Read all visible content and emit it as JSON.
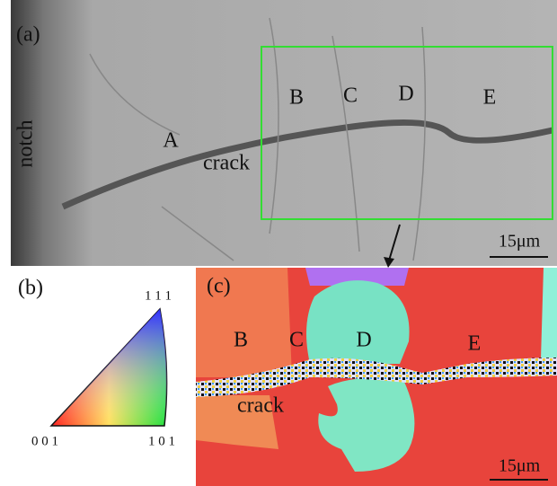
{
  "panel_a": {
    "label": "(a)",
    "notch": "notch",
    "crack": "crack",
    "grains": [
      "A",
      "B",
      "C",
      "D",
      "E"
    ],
    "scale": "15μm"
  },
  "panel_b": {
    "label": "(b)",
    "top": "1 1 1",
    "left": "0 0 1",
    "right": "1 0 1"
  },
  "panel_c": {
    "label": "(c)",
    "crack": "crack",
    "grains": [
      "B",
      "C",
      "D",
      "E"
    ],
    "scale": "15μm"
  }
}
